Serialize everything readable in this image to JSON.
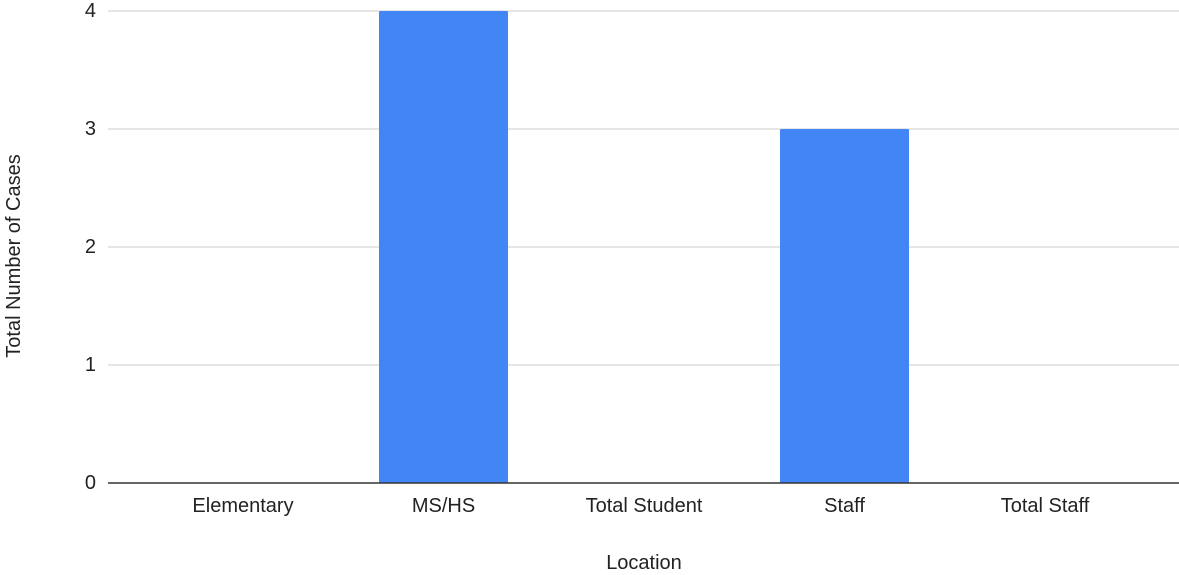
{
  "chart_data": {
    "type": "bar",
    "title": "",
    "xlabel": "Location",
    "ylabel": "Total Number of Cases",
    "categories": [
      "Elementary",
      "MS/HS",
      "Total Student",
      "Staff",
      "Total Staff"
    ],
    "values": [
      0,
      4,
      0,
      3,
      0
    ],
    "ylim": [
      0,
      4
    ],
    "yticks": [
      0,
      1,
      2,
      3,
      4
    ],
    "grid": true,
    "legend": "none",
    "colors": {
      "bar": "#4285f4",
      "grid": "#cccccc",
      "axis": "#333333",
      "text": "#222222"
    }
  }
}
